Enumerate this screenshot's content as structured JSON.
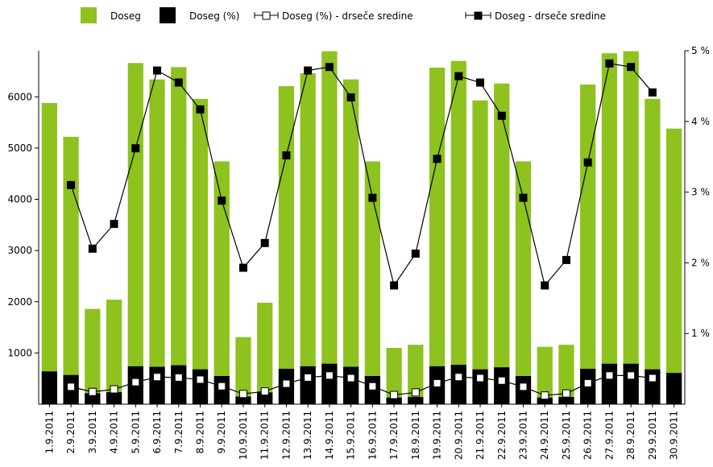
{
  "chart_data": {
    "type": "bar",
    "title": "",
    "xlabel": "",
    "ylabel": "",
    "categories": [
      "1.9.2011",
      "2.9.2011",
      "3.9.2011",
      "4.9.2011",
      "5.9.2011",
      "6.9.2011",
      "7.9.2011",
      "8.9.2011",
      "9.9.2011",
      "10.9.2011",
      "11.9.2011",
      "12.9.2011",
      "13.9.2011",
      "14.9.2011",
      "15.9.2011",
      "16.9.2011",
      "17.9.2011",
      "18.9.2011",
      "19.9.2011",
      "20.9.2011",
      "21.9.2011",
      "22.9.2011",
      "23.9.2011",
      "24.9.2011",
      "25.9.2011",
      "26.9.2011",
      "27.9.2011",
      "28.9.2011",
      "29.9.2011",
      "30.9.2011"
    ],
    "ylim": [
      0,
      6900
    ],
    "y2lim": [
      0,
      5
    ],
    "y_ticks": [
      1000,
      2000,
      3000,
      4000,
      5000,
      6000
    ],
    "y2_ticks": [
      1,
      2,
      3,
      4,
      5
    ],
    "y2_unit": "%",
    "grid": false,
    "legend_position": "top",
    "series": [
      {
        "name": "Doseg",
        "kind": "bar",
        "axis": "left",
        "color": "#8dc21f",
        "values": [
          5880,
          5220,
          1860,
          2040,
          6660,
          6340,
          6580,
          5960,
          4740,
          1310,
          1980,
          6210,
          6460,
          6890,
          6340,
          4740,
          1100,
          1160,
          6570,
          6700,
          5930,
          6260,
          4740,
          1120,
          1160,
          6240,
          6850,
          6890,
          5960,
          5380
        ]
      },
      {
        "name": "Doseg (%)",
        "kind": "bar",
        "axis": "left",
        "color": "#000000",
        "values": [
          640,
          570,
          215,
          235,
          740,
          730,
          760,
          680,
          550,
          150,
          230,
          690,
          740,
          790,
          730,
          550,
          130,
          140,
          740,
          770,
          680,
          720,
          550,
          130,
          140,
          690,
          790,
          790,
          680,
          610
        ]
      },
      {
        "name": "Doseg (%) - drseče sredine",
        "kind": "line",
        "axis": "left",
        "marker": "hollow-square",
        "color": "#000000",
        "values": [
          null,
          340,
          240,
          290,
          430,
          530,
          520,
          480,
          350,
          200,
          250,
          400,
          520,
          560,
          510,
          350,
          180,
          230,
          410,
          530,
          510,
          460,
          340,
          170,
          210,
          410,
          560,
          560,
          510,
          null
        ]
      },
      {
        "name": "Doseg - drseče sredine",
        "kind": "line",
        "axis": "right",
        "marker": "filled-square",
        "color": "#000000",
        "values": [
          null,
          3.1,
          2.2,
          2.55,
          3.62,
          4.72,
          4.55,
          4.17,
          2.88,
          1.93,
          2.28,
          3.52,
          4.72,
          4.77,
          4.34,
          2.92,
          1.68,
          2.13,
          3.47,
          4.64,
          4.55,
          4.08,
          2.92,
          1.68,
          2.04,
          3.42,
          4.82,
          4.77,
          4.41,
          null
        ]
      }
    ]
  },
  "legend": {
    "items": [
      {
        "label": "Doseg",
        "symbol": "green-square",
        "color": "#8dc21f"
      },
      {
        "label": "Doseg (%)",
        "symbol": "black-square",
        "color": "#000000"
      },
      {
        "label": "Doseg (%) - drseče sredine",
        "symbol": "line-hollow-square",
        "color": "#000000"
      },
      {
        "label": "Doseg - drseče sredine",
        "symbol": "line-filled-square",
        "color": "#000000"
      }
    ]
  }
}
